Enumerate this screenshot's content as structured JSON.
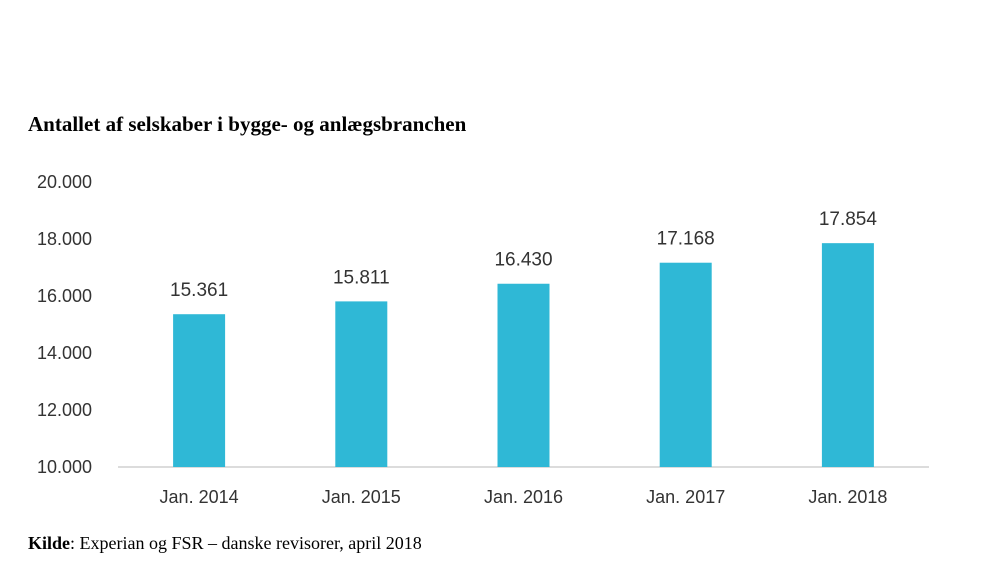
{
  "chart_data": {
    "type": "bar",
    "title": "Antallet af selskaber i bygge- og anlægsbranchen",
    "categories": [
      "Jan. 2014",
      "Jan. 2015",
      "Jan. 2016",
      "Jan. 2017",
      "Jan. 2018"
    ],
    "values": [
      15361,
      15811,
      16430,
      17168,
      17854
    ],
    "data_labels": [
      "15.361",
      "15.811",
      "16.430",
      "17.168",
      "17.854"
    ],
    "xlabel": "",
    "ylabel": "",
    "ylim": [
      10000,
      20000
    ],
    "y_ticks": [
      10000,
      12000,
      14000,
      16000,
      18000,
      20000
    ],
    "y_tick_labels": [
      "10.000",
      "12.000",
      "14.000",
      "16.000",
      "18.000",
      "20.000"
    ],
    "grid": false,
    "legend": "none",
    "bar_color": "#2fb8d6"
  },
  "source": {
    "label": "Kilde",
    "text": ": Experian og FSR – danske revisorer, april 2018"
  }
}
